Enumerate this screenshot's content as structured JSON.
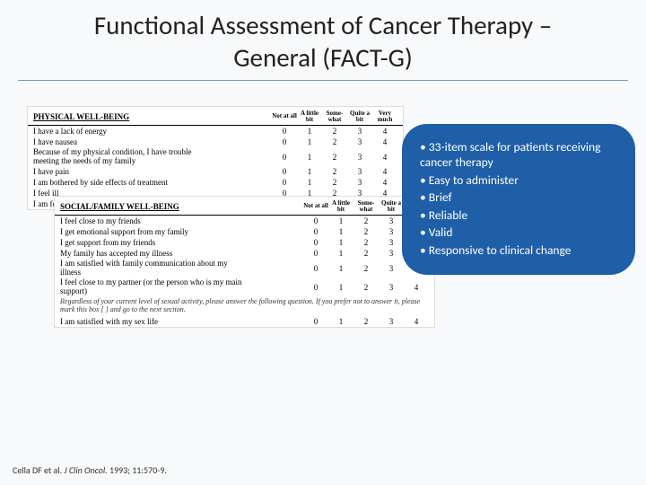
{
  "title": "Functional Assessment of Cancer Therapy – General (FACT-G)",
  "scale_headers": [
    "Not at all",
    "A little bit",
    "Some-what",
    "Quite a bit",
    "Very much"
  ],
  "scale_values": [
    "0",
    "1",
    "2",
    "3",
    "4"
  ],
  "scale1": {
    "section": "PHYSICAL WELL-BEING",
    "items": [
      {
        "text": "I have a lack of energy"
      },
      {
        "text": "I have nausea"
      },
      {
        "text": "Because of my physical condition, I have trouble",
        "text2": "meeting the needs of my family"
      },
      {
        "text": "I have pain"
      },
      {
        "text": "I am bothered by side effects of treatment"
      },
      {
        "text": "I feel ill"
      },
      {
        "text": "I am forced to spend time in bed"
      }
    ]
  },
  "scale2": {
    "section": "SOCIAL/FAMILY WELL-BEING",
    "items": [
      {
        "text": "I feel close to my friends"
      },
      {
        "text": "I get emotional support from my family"
      },
      {
        "text": "I get support from my friends"
      },
      {
        "text": "My family has accepted my illness"
      },
      {
        "text": "I am satisfied with family communication about my",
        "text2": "illness"
      },
      {
        "text": "I feel close to my partner (or the person who is my main",
        "text2": "support)"
      }
    ],
    "note": "Regardless of your current level of sexual activity, please answer the following question. If you prefer not to answer it, please mark this box [ ] and go to the next section.",
    "last": {
      "text": "I am satisfied with my sex life"
    }
  },
  "callout": {
    "items": [
      "33-item scale for patients receiving cancer therapy",
      "Easy to administer",
      "Brief",
      "Reliable",
      "Valid",
      "Responsive to clinical change"
    ],
    "background_color": "#1f5fa8"
  },
  "citation": {
    "authors": "Cella DF et al.",
    "journal": "J Clin Oncol.",
    "rest": "1993; 11:570-9."
  }
}
